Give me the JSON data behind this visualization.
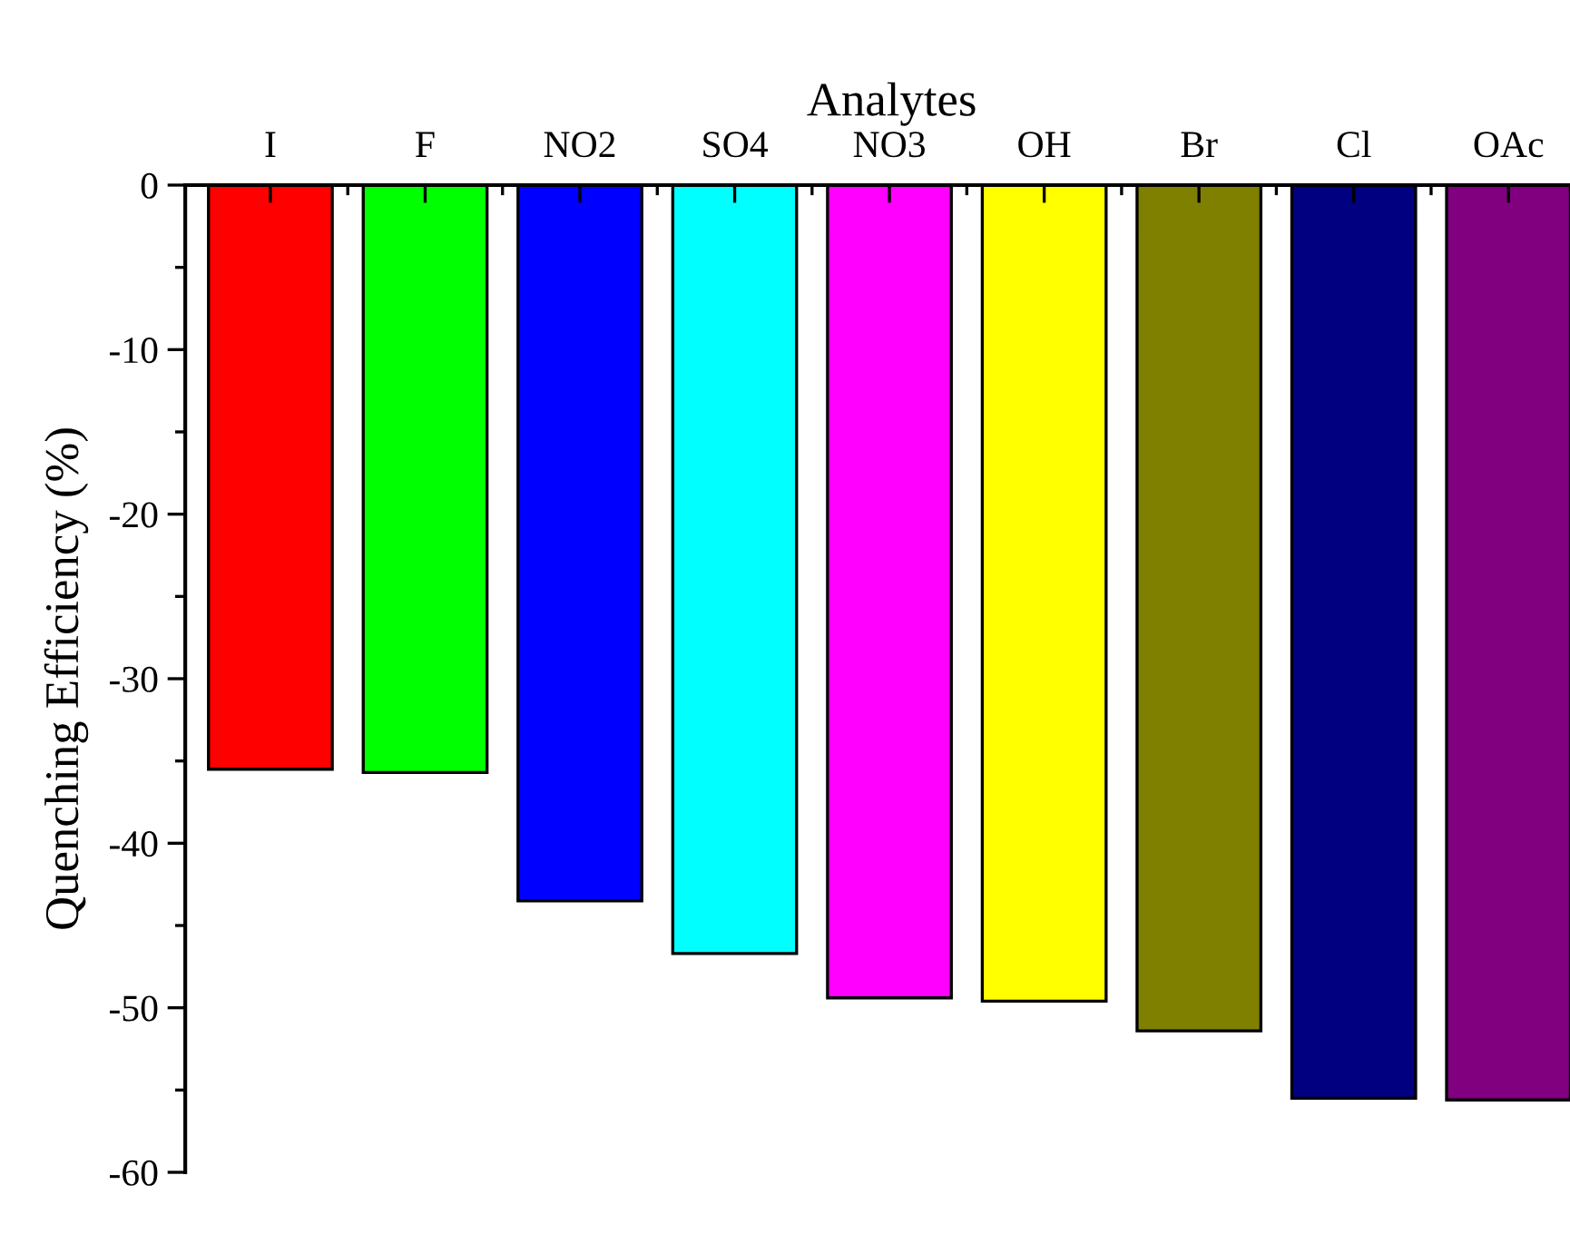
{
  "chart_data": {
    "type": "bar",
    "xlabel": "Analytes",
    "ylabel": "Quenching Efficiency (%)",
    "categories": [
      "I",
      "F",
      "NO2",
      "SO4",
      "NO3",
      "OH",
      "Br",
      "Cl",
      "OAc"
    ],
    "values": [
      -35.5,
      -35.7,
      -43.5,
      -46.7,
      -49.4,
      -49.6,
      -51.4,
      -55.5,
      -55.6
    ],
    "colors": [
      "#ff0000",
      "#00ff00",
      "#0000ff",
      "#00ffff",
      "#ff00ff",
      "#ffff00",
      "#808000",
      "#000080",
      "#800080"
    ],
    "ylim": [
      -60,
      0
    ],
    "yticks": [
      -60,
      -50,
      -40,
      -30,
      -20,
      -10,
      0
    ],
    "grid": false
  }
}
